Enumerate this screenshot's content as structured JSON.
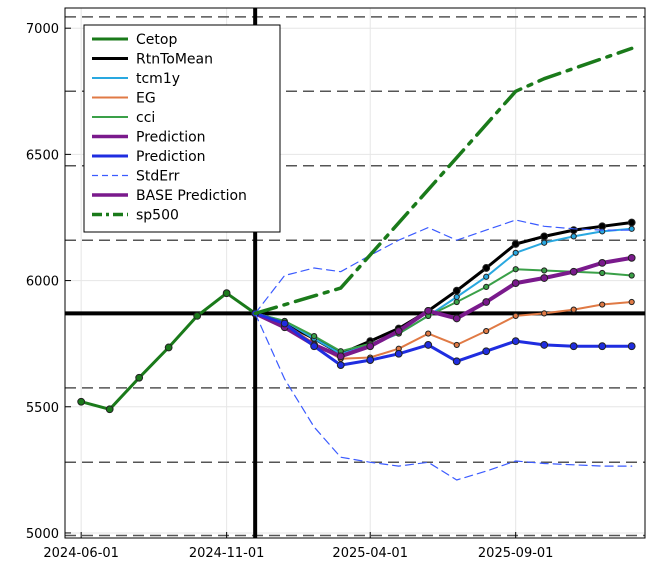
{
  "chart_data": {
    "type": "line",
    "title": "",
    "xlabel": "",
    "ylabel": "",
    "xlim": [
      "2024-05-15",
      "2026-01-15"
    ],
    "ylim": [
      4980,
      7080
    ],
    "grid": true,
    "legend_placement": "top-left",
    "xticks": [
      "2024-06-01",
      "2024-11-01",
      "2025-04-01",
      "2025-09-01"
    ],
    "yticks": [
      5000,
      5500,
      6000,
      6500,
      7000
    ],
    "reference_lines": {
      "horizontal": [
        {
          "y": 5870,
          "style": "solid",
          "color": "#000000"
        },
        {
          "y": 7045,
          "style": "dashed",
          "color": "#555555"
        },
        {
          "y": 6750,
          "style": "dashed",
          "color": "#555555"
        },
        {
          "y": 6455,
          "style": "dashed",
          "color": "#555555"
        },
        {
          "y": 6160,
          "style": "dashed",
          "color": "#555555"
        },
        {
          "y": 5575,
          "style": "dashed",
          "color": "#555555"
        },
        {
          "y": 5280,
          "style": "dashed",
          "color": "#555555"
        },
        {
          "y": 4990,
          "style": "dashed",
          "color": "#555555"
        }
      ],
      "vertical": [
        {
          "x": "2024-12-01",
          "style": "solid",
          "color": "#000000"
        }
      ]
    },
    "series": [
      {
        "name": "Cetop",
        "color": "#1a7a1a",
        "width": 3,
        "dash": "",
        "markers": true,
        "x": [
          "2024-06-01",
          "2024-07-01",
          "2024-08-01",
          "2024-09-01",
          "2024-10-01",
          "2024-11-01",
          "2024-12-01"
        ],
        "values": [
          5520,
          5490,
          5615,
          5735,
          5860,
          5950,
          5870
        ]
      },
      {
        "name": "RtnToMean",
        "color": "#000000",
        "width": 3,
        "dash": "",
        "markers": true,
        "x": [
          "2024-12-01",
          "2025-01-01",
          "2025-02-01",
          "2025-03-01",
          "2025-04-01",
          "2025-05-01",
          "2025-06-01",
          "2025-07-01",
          "2025-08-01",
          "2025-09-01",
          "2025-10-01",
          "2025-11-01",
          "2025-12-01",
          "2026-01-01"
        ],
        "values": [
          5870,
          5830,
          5770,
          5710,
          5760,
          5810,
          5880,
          5960,
          6050,
          6145,
          6175,
          6200,
          6215,
          6230
        ]
      },
      {
        "name": "tcm1y",
        "color": "#29a8e0",
        "width": 2,
        "dash": "",
        "markers": true,
        "x": [
          "2024-12-01",
          "2025-01-01",
          "2025-02-01",
          "2025-03-01",
          "2025-04-01",
          "2025-05-01",
          "2025-06-01",
          "2025-07-01",
          "2025-08-01",
          "2025-09-01",
          "2025-10-01",
          "2025-11-01",
          "2025-12-01",
          "2026-01-01"
        ],
        "values": [
          5870,
          5840,
          5770,
          5710,
          5745,
          5790,
          5860,
          5935,
          6015,
          6110,
          6150,
          6175,
          6195,
          6205
        ]
      },
      {
        "name": "EG",
        "color": "#e07a45",
        "width": 2,
        "dash": "",
        "markers": true,
        "x": [
          "2024-12-01",
          "2025-01-01",
          "2025-02-01",
          "2025-03-01",
          "2025-04-01",
          "2025-05-01",
          "2025-06-01",
          "2025-07-01",
          "2025-08-01",
          "2025-09-01",
          "2025-10-01",
          "2025-11-01",
          "2025-12-01",
          "2026-01-01"
        ],
        "values": [
          5870,
          5830,
          5750,
          5690,
          5695,
          5730,
          5790,
          5745,
          5800,
          5860,
          5870,
          5885,
          5905,
          5915
        ]
      },
      {
        "name": "cci",
        "color": "#3aa048",
        "width": 2,
        "dash": "",
        "markers": true,
        "x": [
          "2024-12-01",
          "2025-01-01",
          "2025-02-01",
          "2025-03-01",
          "2025-04-01",
          "2025-05-01",
          "2025-06-01",
          "2025-07-01",
          "2025-08-01",
          "2025-09-01",
          "2025-10-01",
          "2025-11-01",
          "2025-12-01",
          "2026-01-01"
        ],
        "values": [
          5870,
          5840,
          5780,
          5720,
          5750,
          5790,
          5860,
          5915,
          5975,
          6045,
          6040,
          6035,
          6030,
          6020
        ]
      },
      {
        "name": "Prediction",
        "color": "#7a1a8c",
        "width": 4,
        "dash": "",
        "markers": true,
        "x": [
          "2024-12-01",
          "2025-01-01",
          "2025-02-01",
          "2025-03-01",
          "2025-04-01",
          "2025-05-01",
          "2025-06-01",
          "2025-07-01",
          "2025-08-01",
          "2025-09-01",
          "2025-10-01",
          "2025-11-01",
          "2025-12-01",
          "2026-01-01"
        ],
        "values": [
          5870,
          5815,
          5745,
          5700,
          5740,
          5800,
          5880,
          5850,
          5915,
          5990,
          6010,
          6035,
          6070,
          6090
        ]
      },
      {
        "name": "Prediction",
        "color": "#1f2de0",
        "width": 3,
        "dash": "",
        "markers": true,
        "x": [
          "2024-12-01",
          "2025-01-01",
          "2025-02-01",
          "2025-03-01",
          "2025-04-01",
          "2025-05-01",
          "2025-06-01",
          "2025-07-01",
          "2025-08-01",
          "2025-09-01",
          "2025-10-01",
          "2025-11-01",
          "2025-12-01",
          "2026-01-01"
        ],
        "values": [
          5870,
          5830,
          5740,
          5665,
          5685,
          5710,
          5745,
          5680,
          5720,
          5760,
          5745,
          5740,
          5740,
          5740
        ]
      },
      {
        "name": "StdErr",
        "color": "#3b5bff",
        "width": 1.2,
        "dash": "8,5",
        "markers": false,
        "x": [
          "2024-12-01",
          "2025-01-01",
          "2025-02-01",
          "2025-03-01",
          "2025-04-01",
          "2025-05-01",
          "2025-06-01",
          "2025-07-01",
          "2025-08-01",
          "2025-09-01",
          "2025-10-01",
          "2025-11-01",
          "2025-12-01",
          "2026-01-01"
        ],
        "values": [
          5870,
          6020,
          6050,
          6035,
          6100,
          6160,
          6210,
          6160,
          6200,
          6240,
          6215,
          6205,
          6200,
          6200
        ]
      },
      {
        "name": "",
        "color": "#3b5bff",
        "width": 1.2,
        "dash": "8,5",
        "markers": false,
        "x": [
          "2024-12-01",
          "2025-01-01",
          "2025-02-01",
          "2025-03-01",
          "2025-04-01",
          "2025-05-01",
          "2025-06-01",
          "2025-07-01",
          "2025-08-01",
          "2025-09-01",
          "2025-10-01",
          "2025-11-01",
          "2025-12-01",
          "2026-01-01"
        ],
        "values": [
          5870,
          5610,
          5420,
          5300,
          5280,
          5265,
          5280,
          5210,
          5245,
          5285,
          5275,
          5270,
          5265,
          5265
        ]
      },
      {
        "name": "BASE Prediction",
        "color": "#7a1a8c",
        "width": 4,
        "dash": "",
        "markers": false,
        "x": [],
        "values": []
      },
      {
        "name": "sp500",
        "color": "#1a7a1a",
        "width": 3.5,
        "dash": "22,8,4,8",
        "markers": false,
        "x": [
          "2024-12-01",
          "2025-03-01",
          "2025-09-01",
          "2025-10-01",
          "2026-01-01"
        ],
        "values": [
          5870,
          5970,
          6750,
          6800,
          6920
        ]
      }
    ]
  }
}
